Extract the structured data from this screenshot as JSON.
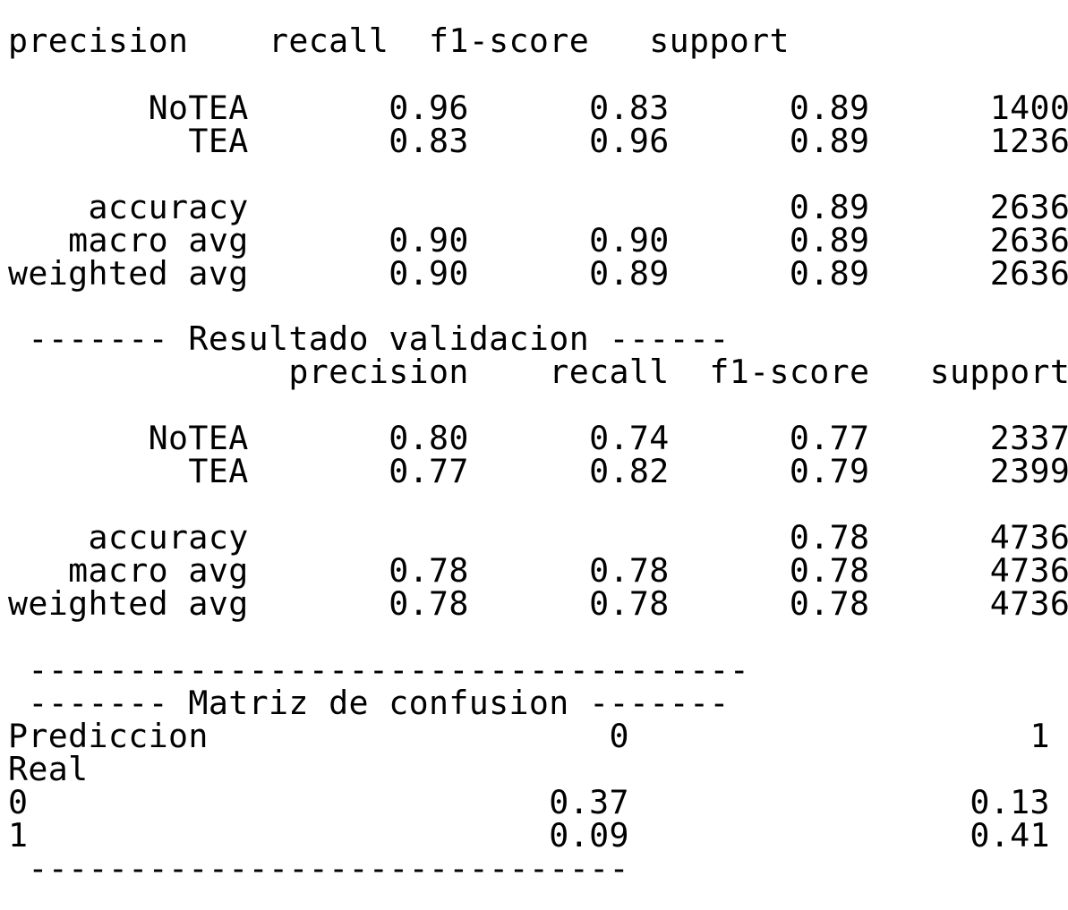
{
  "train_report": {
    "header": "precision    recall  f1-score   support",
    "rows": [
      "       NoTEA       0.96      0.83      0.89      1400",
      "         TEA       0.83      0.96      0.89      1236",
      "    accuracy                           0.89      2636",
      "   macro avg       0.90      0.90      0.89      2636",
      "weighted avg       0.90      0.89      0.89      2636"
    ]
  },
  "validation_report": {
    "title": " ------- Resultado validacion ------",
    "header": "              precision    recall  f1-score   support",
    "rows": [
      "       NoTEA       0.80      0.74      0.77      2337",
      "         TEA       0.77      0.82      0.79      2399",
      "    accuracy                           0.78      4736",
      "   macro avg       0.78      0.78      0.78      4736",
      "weighted avg       0.78      0.78      0.78      4736"
    ]
  },
  "confusion_matrix": {
    "separator_top": " ------------------------------------",
    "title": " ------- Matriz de confusion -------",
    "header": "Prediccion                    0                    1",
    "index_label": "Real",
    "rows": [
      "0                          0.37                 0.13",
      "1                          0.09                 0.41"
    ],
    "separator_bottom": " ------------------------------"
  }
}
